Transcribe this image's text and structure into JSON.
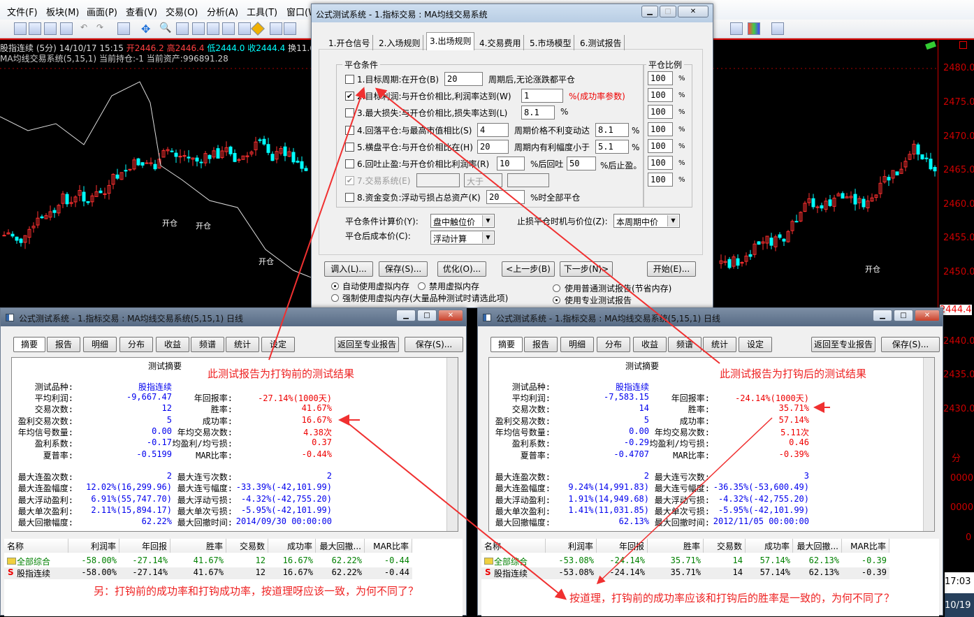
{
  "menubar": {
    "items": [
      "文件(F)",
      "板块(M)",
      "画面(P)",
      "查看(V)",
      "交易(O)",
      "分析(A)",
      "工具(T)",
      "窗口(W)"
    ]
  },
  "chart": {
    "info1": {
      "symbol": "股指连续 (5分) 14/10/17 15:15",
      "open": "开2446.2",
      "high": "高2446.4",
      "low": "低2444.0",
      "close": "收2444.4",
      "turnover": "换11.6"
    },
    "info2": {
      "system": "MA均线交易系统(5,15,1)",
      "position": "当前持仓:-1",
      "assets": "当前资产:996891.28"
    },
    "axis_labels": [
      "2480.0",
      "2475.0",
      "2470.0",
      "2465.0",
      "2460.0",
      "2455.0",
      "2450.0",
      "2444.4",
      "2440.0",
      "2435.0",
      "2430.0",
      "分",
      "0000",
      "0000",
      "0"
    ],
    "markers": [
      "开仓",
      "开仓",
      "开仓",
      "开仓"
    ],
    "time": "17:03",
    "date": "10/19",
    "colors": {
      "up": "#ff3030",
      "down": "#00ffff",
      "axis": "#cc0000"
    }
  },
  "dialog": {
    "title": "公式测试系统 - 1.指标交易 : MA均线交易系统",
    "tabs": [
      "1.开仓信号",
      "2.入场规则",
      "3.出场规则",
      "4.交易费用",
      "5.市场模型",
      "6.测试报告"
    ],
    "active_tab": 2,
    "group_title": "平仓条件",
    "ratio_title": "平仓比例",
    "ratios": [
      "100",
      "100",
      "100",
      "100",
      "100",
      "100",
      "100"
    ],
    "percent": "%",
    "conditions": [
      {
        "label": "1.目标周期:在开仓(B)",
        "value": "20",
        "suffix": "周期后,无论涨跌都平仓",
        "checked": false
      },
      {
        "label": "2.目标利润:与开仓价相比,利润率达到(W)",
        "value": "1",
        "suffix": "%(成功率参数)",
        "checked": true
      },
      {
        "label": "3.最大损失:与开仓价相比,损失率达到(L)",
        "value": "8.1",
        "suffix": "%",
        "checked": false
      },
      {
        "label": "4.回落平仓:与最高市值相比(S)",
        "value": "4",
        "suffix": "周期价格不利变动达",
        "value2": "8.1",
        "suffix2": "%",
        "checked": false
      },
      {
        "label": "5.横盘平仓:与开仓价相比在(H)",
        "value": "20",
        "suffix": "周期内有利幅度小于",
        "value2": "5.1",
        "suffix2": "%",
        "checked": false
      },
      {
        "label": "6.回吐止盈:与开仓价相比利润率(R)",
        "value": "10",
        "suffix": "%后回吐",
        "value2": "50",
        "suffix2": "%后止盈。",
        "checked": false
      },
      {
        "label": "7.交易系统(E)",
        "select": "大于",
        "checked": true,
        "disabled": true
      },
      {
        "label": "8.资金变负:浮动亏损占总资产(K)",
        "value": "20",
        "suffix": "%时全部平仓",
        "checked": false
      }
    ],
    "calc_price_label": "平仓条件计算价(Y):",
    "calc_price": "盘中触位价",
    "stop_label": "止损平仓时机与价位(Z):",
    "stop_value": "本周期中价",
    "cost_label": "平仓后成本价(C):",
    "cost_value": "浮动计算",
    "buttons": {
      "load": "调入(L)...",
      "save": "保存(S)...",
      "optimize": "优化(O)...",
      "prev": "<上一步(B)",
      "next": "下一步(N)>",
      "start": "开始(E)..."
    },
    "memory": {
      "auto": "自动使用虚拟内存",
      "disable": "禁用虚拟内存",
      "force": "强制使用虚拟内存(大量品种测试时请选此项)",
      "normal_report": "使用普通测试报告(节省内存)",
      "pro_report": "使用专业测试报告"
    }
  },
  "report_common": {
    "title": "公式测试系统 - 1.指标交易 : MA均线交易系统(5,15,1) 日线",
    "tabs": [
      "摘要",
      "报告",
      "明细",
      "分布",
      "收益",
      "频谱",
      "统计",
      "设定"
    ],
    "back_button": "返回至专业报告",
    "save_button": "保存(S)...",
    "summary_title": "测试摘要",
    "columns": [
      "名称",
      "利润率",
      "年回报",
      "胜率",
      "交易数",
      "成功率",
      "最大回撤...",
      "MAR比率"
    ]
  },
  "reports": [
    {
      "annotation": "此测试报告为打钩前的测试结果",
      "variety_label": "测试品种:",
      "variety": "股指连续",
      "rows": [
        [
          "平均利润:",
          "-9,667.47",
          "年回报率:",
          "-27.14%(1000天)"
        ],
        [
          "交易次数:",
          "12",
          "胜率:",
          "41.67%"
        ],
        [
          "盈利交易次数:",
          "5",
          "成功率:",
          "16.67%"
        ],
        [
          "年均信号数量:",
          "0.00",
          "年均交易次数:",
          "4.38次"
        ],
        [
          "盈利系数:",
          "-0.17",
          "均盈利/均亏损:",
          "0.37"
        ],
        [
          "夏普率:",
          "-0.5199",
          "MAR比率:",
          "-0.44%"
        ]
      ],
      "rows2": [
        [
          "最大连盈次数:",
          "2",
          "最大连亏次数:",
          "2"
        ],
        [
          "最大连盈幅度:",
          "12.02%(16,299.96)",
          "最大连亏幅度:",
          "-33.39%(-42,101.99)"
        ],
        [
          "最大浮动盈利:",
          "6.91%(55,747.70)",
          "最大浮动亏损:",
          "-4.32%(-42,755.20)"
        ],
        [
          "最大单次盈利:",
          "2.11%(15,894.17)",
          "最大单次亏损:",
          "-5.95%(-42,101.99)"
        ],
        [
          "最大回撤幅度:",
          "62.22%",
          "最大回撤时间:",
          "2014/09/30 00:00:00"
        ]
      ],
      "table": [
        [
          "全部综合",
          "-58.00%",
          "-27.14%",
          "41.67%",
          "12",
          "16.67%",
          "62.22%",
          "-0.44"
        ],
        [
          "股指连续",
          "-58.00%",
          "-27.14%",
          "41.67%",
          "12",
          "16.67%",
          "62.22%",
          "-0.44"
        ]
      ],
      "comment": "另：打钩前的成功率和打钩成功率，按道理呀应该一致，为何不同了？"
    },
    {
      "annotation": "此测试报告为打钩后的测试结果",
      "variety_label": "测试品种:",
      "variety": "股指连续",
      "rows": [
        [
          "平均利润:",
          "-7,583.15",
          "年回报率:",
          "-24.14%(1000天)"
        ],
        [
          "交易次数:",
          "14",
          "胜率:",
          "35.71%"
        ],
        [
          "盈利交易次数:",
          "5",
          "成功率:",
          "57.14%"
        ],
        [
          "年均信号数量:",
          "0.00",
          "年均交易次数:",
          "5.11次"
        ],
        [
          "盈利系数:",
          "-0.29",
          "均盈利/均亏损:",
          "0.46"
        ],
        [
          "夏普率:",
          "-0.4707",
          "MAR比率:",
          "-0.39%"
        ]
      ],
      "rows2": [
        [
          "最大连盈次数:",
          "2",
          "最大连亏次数:",
          "3"
        ],
        [
          "最大连盈幅度:",
          "9.24%(14,991.83)",
          "最大连亏幅度:",
          "-36.35%(-53,600.49)"
        ],
        [
          "最大浮动盈利:",
          "1.91%(14,949.68)",
          "最大浮动亏损:",
          "-4.32%(-42,755.20)"
        ],
        [
          "最大单次盈利:",
          "1.41%(11,031.85)",
          "最大单次亏损:",
          "-5.95%(-42,101.99)"
        ],
        [
          "最大回撤幅度:",
          "62.13%",
          "最大回撤时间:",
          "2012/11/05 00:00:00"
        ]
      ],
      "table": [
        [
          "全部综合",
          "-53.08%",
          "-24.14%",
          "35.71%",
          "14",
          "57.14%",
          "62.13%",
          "-0.39"
        ],
        [
          "股指连续",
          "-53.08%",
          "-24.14%",
          "35.71%",
          "14",
          "57.14%",
          "62.13%",
          "-0.39"
        ]
      ],
      "comment": "按道理，打钩前的成功率应该和打钩后的胜率是一致的，为何不同了？"
    }
  ]
}
